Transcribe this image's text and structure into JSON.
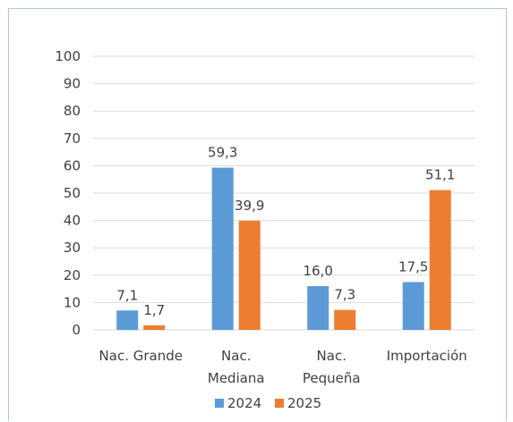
{
  "chart_data": {
    "type": "bar",
    "title": "",
    "xlabel": "",
    "ylabel": "",
    "categories": [
      [
        "Nac. Grande"
      ],
      [
        "Nac.",
        "Mediana"
      ],
      [
        "Nac.",
        "Pequeña"
      ],
      [
        "Importación"
      ]
    ],
    "series": [
      {
        "name": "2024",
        "color": "#5b9bd5",
        "values": [
          7.1,
          59.3,
          16.0,
          17.5
        ],
        "labels": [
          "7,1",
          "59,3",
          "16,0",
          "17,5"
        ]
      },
      {
        "name": "2025",
        "color": "#ed7d31",
        "values": [
          1.7,
          39.9,
          7.3,
          51.1
        ],
        "labels": [
          "1,7",
          "39,9",
          "7,3",
          "51,1"
        ]
      }
    ],
    "ylim": [
      0,
      100
    ],
    "yticks": [
      0,
      10,
      20,
      30,
      40,
      50,
      60,
      70,
      80,
      90,
      100
    ],
    "grid": true,
    "legend_position": "bottom"
  }
}
